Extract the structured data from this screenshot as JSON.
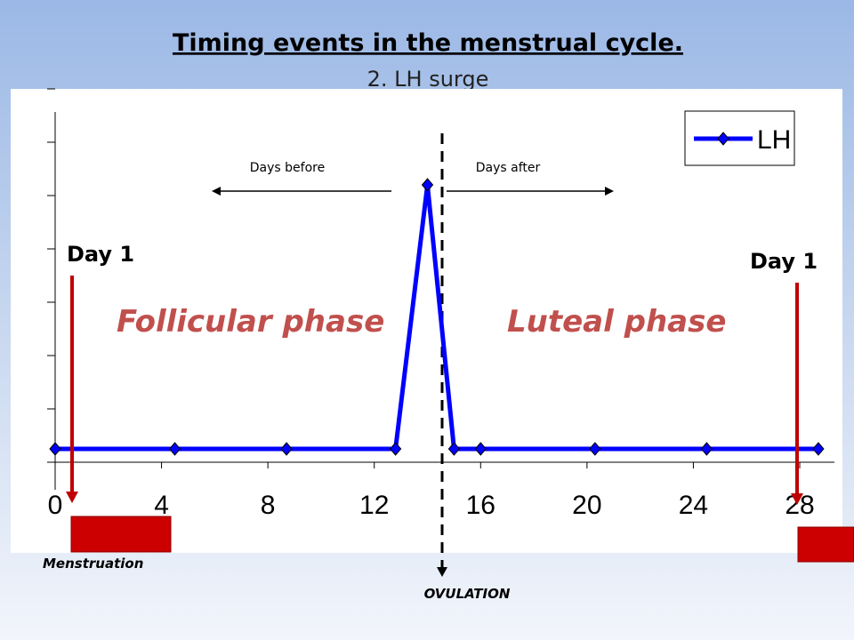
{
  "slide": {
    "title": "Timing events in the menstrual cycle.",
    "subtitle": "2. LH surge"
  },
  "annotations": {
    "days_before": "Days before",
    "days_after": "Days after",
    "day1_left": "Day 1",
    "day1_right": "Day 1",
    "follicular": "Follicular phase",
    "luteal": "Luteal phase",
    "menstruation": "Menstruation",
    "ovulation": "OVULATION"
  },
  "colors": {
    "series": "#0000ff",
    "phase": "#c0504d",
    "marker_arrow": "#c00000",
    "menstruation_block": "#cc0000"
  },
  "chart_data": {
    "type": "line",
    "title": "",
    "xlabel": "",
    "ylabel": "",
    "xlim": [
      0,
      28
    ],
    "ylim": [
      0,
      7
    ],
    "x_ticks": [
      0,
      4,
      8,
      12,
      16,
      20,
      24,
      28
    ],
    "x_tick_labels": [
      "0",
      "4",
      "8",
      "12",
      "16",
      "20",
      "24",
      "28"
    ],
    "y_ticks": [
      0,
      1,
      2,
      3,
      4,
      5,
      6,
      7
    ],
    "grid": false,
    "legend": "top-right",
    "series": [
      {
        "name": "LH",
        "x": [
          0,
          4.5,
          8.7,
          12.8,
          14,
          15,
          16,
          20.3,
          24.5,
          28.7
        ],
        "y": [
          0.25,
          0.25,
          0.25,
          0.25,
          5.2,
          0.25,
          0.25,
          0.25,
          0.25,
          0.25
        ]
      }
    ],
    "ovulation_day": 14.5
  }
}
